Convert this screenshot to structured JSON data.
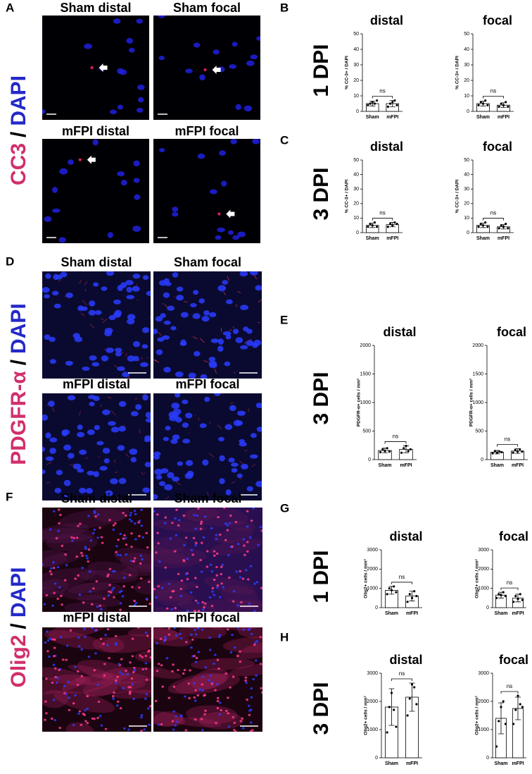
{
  "image_panels": [
    {
      "label": "A",
      "stain": {
        "marker": "CC3",
        "sep": "/",
        "counter": "DAPI"
      },
      "images": [
        "Sham distal",
        "Sham focal",
        "mFPI distal",
        "mFPI focal"
      ]
    },
    {
      "label": "D",
      "stain": {
        "marker": "PDGFR-α",
        "sep": "/",
        "counter": "DAPI"
      },
      "images": [
        "Sham distal",
        "Sham focal",
        "mFPI distal",
        "mFPI focal"
      ]
    },
    {
      "label": "F",
      "stain": {
        "marker": "Olig2",
        "sep": "/",
        "counter": "DAPI"
      },
      "images": [
        "Sham distal",
        "Sham focal",
        "mFPI distal",
        "mFPI focal"
      ]
    }
  ],
  "chart_panels": [
    {
      "label": "B",
      "row": "1 DPI"
    },
    {
      "label": "C",
      "row": "3 DPI"
    },
    {
      "label": "E",
      "row": "3 DPI"
    },
    {
      "label": "G",
      "row": "1 DPI"
    },
    {
      "label": "H",
      "row": "3 DPI"
    }
  ],
  "chart_data": [
    {
      "type": "bar",
      "title": "distal",
      "ylabel": "% CC-3+ / DAPI",
      "categories": [
        "Sham",
        "mFPI"
      ],
      "values": [
        5,
        5
      ],
      "errors": [
        1.5,
        2
      ],
      "points": [
        [
          4,
          5,
          6,
          5,
          7
        ],
        [
          3,
          5,
          6,
          7,
          4
        ]
      ],
      "significance": "ns",
      "ylim": [
        0,
        50
      ],
      "yticks": [
        0,
        10,
        20,
        30,
        40,
        50
      ]
    },
    {
      "type": "bar",
      "title": "focal",
      "ylabel": "% CC-3+ / DAPI",
      "categories": [
        "Sham",
        "mFPI"
      ],
      "values": [
        5,
        4
      ],
      "errors": [
        1.5,
        1.5
      ],
      "points": [
        [
          4,
          6,
          5,
          7,
          4
        ],
        [
          3,
          5,
          4,
          6,
          3
        ]
      ],
      "significance": "ns",
      "ylim": [
        0,
        50
      ],
      "yticks": [
        0,
        10,
        20,
        30,
        40,
        50
      ]
    },
    {
      "type": "bar",
      "title": "distal",
      "ylabel": "% CC-3+ / DAPI",
      "categories": [
        "Sham",
        "mFPI"
      ],
      "values": [
        5,
        5.5
      ],
      "errors": [
        1.5,
        1.5
      ],
      "points": [
        [
          4,
          6,
          5,
          7,
          4
        ],
        [
          4,
          6,
          5,
          7,
          6
        ]
      ],
      "significance": "ns",
      "ylim": [
        0,
        50
      ],
      "yticks": [
        0,
        10,
        20,
        30,
        40,
        50
      ]
    },
    {
      "type": "bar",
      "title": "focal",
      "ylabel": "% CC-3+ / DAPI",
      "categories": [
        "Sham",
        "mFPI"
      ],
      "values": [
        5,
        4
      ],
      "errors": [
        1.5,
        1.5
      ],
      "points": [
        [
          4,
          6,
          5,
          7,
          4
        ],
        [
          3,
          5,
          4,
          6,
          3
        ]
      ],
      "significance": "ns",
      "ylim": [
        0,
        50
      ],
      "yticks": [
        0,
        10,
        20,
        30,
        40,
        50
      ]
    },
    {
      "type": "bar",
      "title": "distal",
      "ylabel": "PDGFR-α+ cells / mm²",
      "categories": [
        "Sham",
        "mFPI"
      ],
      "values": [
        160,
        180
      ],
      "errors": [
        40,
        60
      ],
      "points": [
        [
          130,
          180,
          150,
          200,
          140
        ],
        [
          120,
          200,
          240,
          150,
          180
        ]
      ],
      "significance": "ns",
      "ylim": [
        0,
        2000
      ],
      "yticks": [
        0,
        500,
        1000,
        1500,
        2000
      ]
    },
    {
      "type": "bar",
      "title": "focal",
      "ylabel": "PDGFR-α+ cells / mm²",
      "categories": [
        "Sham",
        "mFPI"
      ],
      "values": [
        130,
        150
      ],
      "errors": [
        30,
        40
      ],
      "points": [
        [
          110,
          150,
          120,
          140,
          130
        ],
        [
          120,
          170,
          140,
          180,
          140
        ]
      ],
      "significance": "ns",
      "ylim": [
        0,
        2000
      ],
      "yticks": [
        0,
        500,
        1000,
        1500,
        2000
      ]
    },
    {
      "type": "bar",
      "title": "distal",
      "ylabel": "Olig2+ cells / mm²",
      "categories": [
        "Sham",
        "mFPI"
      ],
      "values": [
        900,
        600
      ],
      "errors": [
        200,
        250
      ],
      "points": [
        [
          700,
          1000,
          900,
          1100,
          800
        ],
        [
          300,
          700,
          500,
          850,
          600
        ]
      ],
      "significance": "ns",
      "ylim": [
        0,
        3000
      ],
      "yticks": [
        0,
        1000,
        2000,
        3000
      ]
    },
    {
      "type": "bar",
      "title": "focal",
      "ylabel": "Olig2+ cells / mm²",
      "categories": [
        "Sham",
        "mFPI"
      ],
      "values": [
        650,
        500
      ],
      "errors": [
        150,
        200
      ],
      "points": [
        [
          500,
          700,
          650,
          800,
          600
        ],
        [
          300,
          600,
          450,
          700,
          400
        ]
      ],
      "significance": "ns",
      "ylim": [
        0,
        3000
      ],
      "yticks": [
        0,
        1000,
        2000,
        3000
      ]
    },
    {
      "type": "bar",
      "title": "distal",
      "ylabel": "Olig2+ cells / mm²",
      "categories": [
        "Sham",
        "mFPI"
      ],
      "values": [
        1800,
        2150
      ],
      "errors": [
        650,
        500
      ],
      "points": [
        [
          900,
          1800,
          2300,
          1700,
          1100
        ],
        [
          1500,
          2100,
          2600,
          2500,
          1900
        ]
      ],
      "significance": "ns",
      "ylim": [
        0,
        3000
      ],
      "yticks": [
        0,
        1000,
        2000,
        3000
      ]
    },
    {
      "type": "bar",
      "title": "focal",
      "ylabel": "Olig2+ cells / mm²",
      "categories": [
        "Sham",
        "mFPI"
      ],
      "values": [
        1400,
        1750
      ],
      "errors": [
        550,
        400
      ],
      "points": [
        [
          400,
          1300,
          1800,
          2000,
          1200
        ],
        [
          1200,
          1700,
          2200,
          1900,
          1800
        ]
      ],
      "significance": "ns",
      "ylim": [
        0,
        3000
      ],
      "yticks": [
        0,
        1000,
        2000,
        3000
      ]
    }
  ]
}
